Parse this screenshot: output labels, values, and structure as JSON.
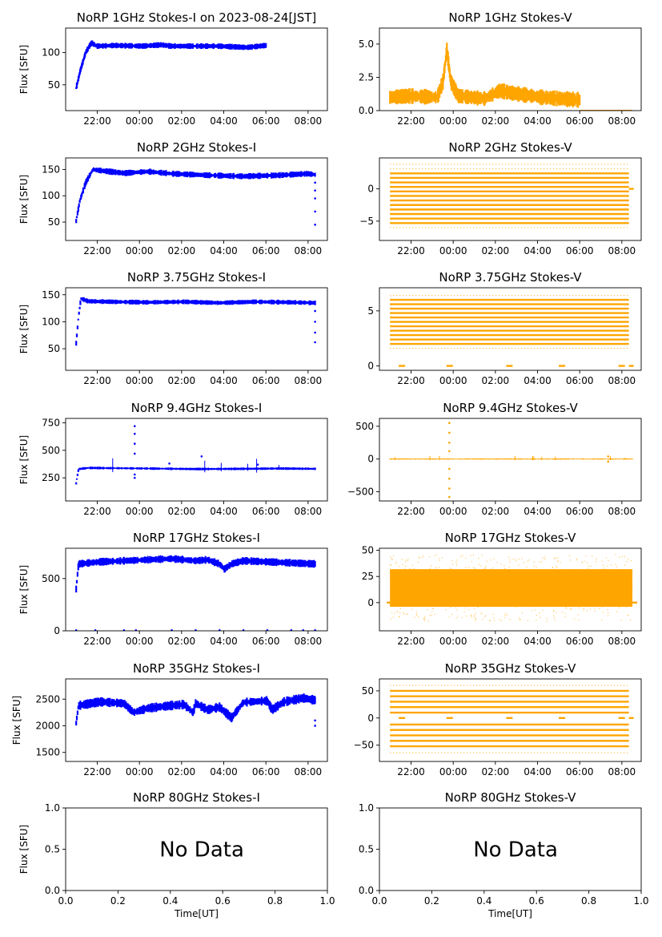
{
  "figure": {
    "xlabel": "Time[UT]",
    "ylabel": "Flux [SFU]",
    "no_data_text": "No Data",
    "colors": {
      "stokes_i": "#0000ff",
      "stokes_v": "#ffa500"
    }
  },
  "chart_data": [
    {
      "type": "scatter",
      "title": "NoRP 1GHz Stokes-I on 2023-08-24[JST]",
      "stokes": "I",
      "has_ylabel": true,
      "x_ticks": [
        "22:00",
        "00:00",
        "02:00",
        "04:00",
        "06:00",
        "08:00"
      ],
      "xlim": [
        "20:30",
        "08:55"
      ],
      "data_range": [
        "21:00",
        "06:00"
      ],
      "ylim": [
        10,
        138
      ],
      "y_ticks": [
        50,
        100
      ],
      "series": [
        {
          "values": [
            [
              0,
              45
            ],
            [
              0.02,
              70
            ],
            [
              0.05,
              100
            ],
            [
              0.08,
              115
            ],
            [
              0.11,
              110
            ],
            [
              0.2,
              111
            ],
            [
              0.35,
              110
            ],
            [
              0.45,
              112
            ],
            [
              0.5,
              110
            ],
            [
              0.6,
              110
            ],
            [
              0.75,
              110
            ],
            [
              0.9,
              108
            ],
            [
              1,
              111
            ]
          ]
        }
      ],
      "band": 3,
      "spike_count": 0,
      "spike_amp": 0,
      "outliers": []
    },
    {
      "type": "scatter",
      "title": "NoRP 1GHz Stokes-V",
      "stokes": "V",
      "has_ylabel": false,
      "x_ticks": [
        "22:00",
        "00:00",
        "02:00",
        "04:00",
        "06:00",
        "08:00"
      ],
      "xlim": [
        "20:30",
        "08:55"
      ],
      "data_range": [
        "21:00",
        "06:00"
      ],
      "ylim": [
        0,
        6.2
      ],
      "y_ticks": [
        0.0,
        2.5,
        5.0
      ],
      "series": [
        {
          "values": [
            [
              0,
              1.0
            ],
            [
              0.1,
              1.1
            ],
            [
              0.25,
              1.0
            ],
            [
              0.28,
              2.2
            ],
            [
              0.3,
              4.6
            ],
            [
              0.32,
              2.2
            ],
            [
              0.36,
              1.1
            ],
            [
              0.5,
              0.9
            ],
            [
              0.58,
              1.5
            ],
            [
              0.65,
              1.3
            ],
            [
              0.8,
              1.0
            ],
            [
              0.9,
              0.9
            ],
            [
              1,
              0.8
            ]
          ]
        }
      ],
      "band": 0.4,
      "spike_count": 0,
      "spike_amp": 0,
      "outliers": [],
      "extra_segment": {
        "range": [
          "06:00",
          "08:30"
        ],
        "value": 0.02
      }
    },
    {
      "type": "scatter",
      "title": "NoRP 2GHz Stokes-I",
      "stokes": "I",
      "has_ylabel": true,
      "x_ticks": [
        "22:00",
        "00:00",
        "02:00",
        "04:00",
        "06:00",
        "08:00"
      ],
      "xlim": [
        "20:30",
        "08:55"
      ],
      "data_range": [
        "21:00",
        "08:20"
      ],
      "ylim": [
        15,
        172
      ],
      "y_ticks": [
        50,
        100,
        150
      ],
      "series": [
        {
          "values": [
            [
              0,
              52
            ],
            [
              0.015,
              90
            ],
            [
              0.04,
              125
            ],
            [
              0.07,
              150
            ],
            [
              0.1,
              148
            ],
            [
              0.2,
              143
            ],
            [
              0.3,
              146
            ],
            [
              0.4,
              142
            ],
            [
              0.55,
              139
            ],
            [
              0.7,
              137
            ],
            [
              0.85,
              139
            ],
            [
              0.97,
              142
            ],
            [
              1,
              140
            ]
          ]
        }
      ],
      "band": 4,
      "spike_count": 0,
      "spike_amp": 0,
      "outliers": [
        [
          1.0,
          125
        ],
        [
          1.0,
          95
        ],
        [
          1.0,
          70
        ],
        [
          1.0,
          45
        ],
        [
          1.0,
          110
        ]
      ]
    },
    {
      "type": "stripes",
      "title": "NoRP 2GHz Stokes-V",
      "stokes": "V",
      "has_ylabel": false,
      "x_ticks": [
        "22:00",
        "00:00",
        "02:00",
        "04:00",
        "06:00",
        "08:00"
      ],
      "xlim": [
        "20:30",
        "08:55"
      ],
      "data_range": [
        "21:00",
        "08:20"
      ],
      "ylim": [
        -8,
        4.8
      ],
      "y_ticks": [
        -5,
        0
      ],
      "levels": [
        -5.3,
        -4.6,
        -3.9,
        -3.2,
        -2.5,
        -1.8,
        -1.1,
        -0.4,
        0.3,
        1.0,
        1.7,
        2.4
      ],
      "sparse_levels": [
        -6.0,
        3.1,
        3.8
      ],
      "end_marker": 0
    },
    {
      "type": "scatter",
      "title": "NoRP 3.75GHz Stokes-I",
      "stokes": "I",
      "has_ylabel": true,
      "x_ticks": [
        "22:00",
        "00:00",
        "02:00",
        "04:00",
        "06:00",
        "08:00"
      ],
      "xlim": [
        "20:30",
        "08:55"
      ],
      "data_range": [
        "21:00",
        "08:20"
      ],
      "ylim": [
        10,
        163
      ],
      "y_ticks": [
        50,
        100,
        150
      ],
      "series": [
        {
          "values": [
            [
              0,
              60
            ],
            [
              0.01,
              110
            ],
            [
              0.02,
              143
            ],
            [
              0.05,
              138
            ],
            [
              0.15,
              137
            ],
            [
              0.3,
              136
            ],
            [
              0.45,
              137
            ],
            [
              0.6,
              135
            ],
            [
              0.75,
              137
            ],
            [
              0.9,
              136
            ],
            [
              1,
              135
            ]
          ]
        }
      ],
      "band": 3,
      "spike_count": 0,
      "spike_amp": 0,
      "outliers": [
        [
          1.0,
          120
        ],
        [
          1.0,
          100
        ],
        [
          1.0,
          80
        ],
        [
          1.0,
          62
        ]
      ]
    },
    {
      "type": "stripes",
      "title": "NoRP 3.75GHz Stokes-V",
      "stokes": "V",
      "has_ylabel": false,
      "x_ticks": [
        "22:00",
        "00:00",
        "02:00",
        "04:00",
        "06:00",
        "08:00"
      ],
      "xlim": [
        "20:30",
        "08:55"
      ],
      "data_range": [
        "21:00",
        "08:20"
      ],
      "ylim": [
        -0.4,
        7.1
      ],
      "y_ticks": [
        0,
        5
      ],
      "levels": [
        2.0,
        2.4,
        2.8,
        3.2,
        3.6,
        4.0,
        4.4,
        4.8,
        5.2,
        5.6,
        6.0
      ],
      "sparse_levels": [
        1.6,
        6.4
      ],
      "baseline": 0,
      "end_marker": 0
    },
    {
      "type": "scatter",
      "title": "NoRP 9.4GHz Stokes-I",
      "stokes": "I",
      "has_ylabel": true,
      "x_ticks": [
        "22:00",
        "00:00",
        "02:00",
        "04:00",
        "06:00",
        "08:00"
      ],
      "xlim": [
        "20:30",
        "08:55"
      ],
      "data_range": [
        "21:00",
        "08:20"
      ],
      "ylim": [
        40,
        790
      ],
      "y_ticks": [
        250,
        500,
        750
      ],
      "series": [
        {
          "values": [
            [
              0,
              200
            ],
            [
              0.01,
              330
            ],
            [
              0.05,
              340
            ],
            [
              0.15,
              338
            ],
            [
              0.3,
              335
            ],
            [
              0.5,
              330
            ],
            [
              0.7,
              332
            ],
            [
              0.85,
              335
            ],
            [
              1,
              332
            ]
          ]
        }
      ],
      "band": 8,
      "spike_count": 6,
      "spike_amp": 60,
      "outliers": [
        [
          0.245,
          720
        ],
        [
          0.245,
          650
        ],
        [
          0.245,
          560
        ],
        [
          0.245,
          470
        ],
        [
          0.245,
          250
        ],
        [
          0.245,
          280
        ],
        [
          0.39,
          380
        ],
        [
          0.525,
          445
        ],
        [
          0.76,
          370
        ]
      ]
    },
    {
      "type": "scatter",
      "title": "NoRP 9.4GHz Stokes-V",
      "stokes": "V",
      "has_ylabel": false,
      "x_ticks": [
        "22:00",
        "00:00",
        "02:00",
        "04:00",
        "06:00",
        "08:00"
      ],
      "xlim": [
        "20:30",
        "08:55"
      ],
      "data_range": [
        "21:00",
        "08:30"
      ],
      "ylim": [
        -640,
        620
      ],
      "y_ticks": [
        -500,
        0,
        500
      ],
      "series": [
        {
          "values": [
            [
              0,
              0
            ],
            [
              1,
              0
            ]
          ]
        }
      ],
      "band": 6,
      "spike_count": 10,
      "spike_amp": 35,
      "outliers": [
        [
          0.245,
          550
        ],
        [
          0.245,
          400
        ],
        [
          0.245,
          250
        ],
        [
          0.245,
          120
        ],
        [
          0.245,
          -150
        ],
        [
          0.245,
          -300
        ],
        [
          0.245,
          -450
        ],
        [
          0.245,
          -580
        ],
        [
          0.9,
          40
        ],
        [
          0.9,
          -40
        ]
      ]
    },
    {
      "type": "scatter",
      "title": "NoRP 17GHz Stokes-I",
      "stokes": "I",
      "has_ylabel": true,
      "x_ticks": [
        "22:00",
        "00:00",
        "02:00",
        "04:00",
        "06:00",
        "08:00"
      ],
      "xlim": [
        "20:30",
        "08:55"
      ],
      "data_range": [
        "21:00",
        "08:20"
      ],
      "ylim": [
        0,
        790
      ],
      "y_ticks": [
        0,
        500
      ],
      "series": [
        {
          "values": [
            [
              0,
              400
            ],
            [
              0.01,
              640
            ],
            [
              0.1,
              660
            ],
            [
              0.2,
              670
            ],
            [
              0.3,
              680
            ],
            [
              0.4,
              690
            ],
            [
              0.5,
              670
            ],
            [
              0.55,
              680
            ],
            [
              0.6,
              640
            ],
            [
              0.62,
              590
            ],
            [
              0.65,
              640
            ],
            [
              0.7,
              670
            ],
            [
              0.8,
              660
            ],
            [
              0.9,
              650
            ],
            [
              1,
              640
            ]
          ]
        }
      ],
      "band": 25,
      "spike_count": 0,
      "spike_amp": 0,
      "outliers": [
        [
          0.0,
          5
        ],
        [
          0.08,
          5
        ],
        [
          0.2,
          5
        ],
        [
          0.25,
          5
        ],
        [
          0.4,
          5
        ],
        [
          0.5,
          5
        ],
        [
          0.6,
          5
        ],
        [
          0.7,
          5
        ],
        [
          0.8,
          5
        ],
        [
          0.9,
          5
        ],
        [
          0.95,
          5
        ],
        [
          1.02,
          5
        ]
      ]
    },
    {
      "type": "noise",
      "title": "NoRP 17GHz Stokes-V",
      "stokes": "V",
      "has_ylabel": false,
      "x_ticks": [
        "22:00",
        "00:00",
        "02:00",
        "04:00",
        "06:00",
        "08:00"
      ],
      "xlim": [
        "20:30",
        "08:55"
      ],
      "data_range": [
        "21:00",
        "08:30"
      ],
      "ylim": [
        -27,
        52
      ],
      "y_ticks": [
        0,
        25,
        50
      ],
      "center": 14,
      "half_width": 18,
      "sparse_width": 32,
      "end_value": 0
    },
    {
      "type": "scatter",
      "title": "NoRP 35GHz Stokes-I",
      "stokes": "I",
      "has_ylabel": true,
      "x_ticks": [
        "22:00",
        "00:00",
        "02:00",
        "04:00",
        "06:00",
        "08:00"
      ],
      "xlim": [
        "20:30",
        "08:55"
      ],
      "data_range": [
        "21:00",
        "08:20"
      ],
      "ylim": [
        1330,
        2880
      ],
      "y_ticks": [
        1500,
        2000,
        2500
      ],
      "series": [
        {
          "values": [
            [
              0,
              2050
            ],
            [
              0.01,
              2380
            ],
            [
              0.1,
              2450
            ],
            [
              0.2,
              2420
            ],
            [
              0.24,
              2250
            ],
            [
              0.3,
              2330
            ],
            [
              0.4,
              2380
            ],
            [
              0.45,
              2400
            ],
            [
              0.49,
              2250
            ],
            [
              0.5,
              2420
            ],
            [
              0.55,
              2300
            ],
            [
              0.6,
              2350
            ],
            [
              0.65,
              2150
            ],
            [
              0.7,
              2440
            ],
            [
              0.8,
              2470
            ],
            [
              0.82,
              2300
            ],
            [
              0.87,
              2450
            ],
            [
              0.95,
              2520
            ],
            [
              1,
              2480
            ]
          ]
        }
      ],
      "band": 60,
      "spike_count": 0,
      "spike_amp": 0,
      "outliers": [
        [
          1.0,
          2100
        ],
        [
          1.0,
          2000
        ]
      ]
    },
    {
      "type": "stripes",
      "title": "NoRP 35GHz Stokes-V",
      "stokes": "V",
      "has_ylabel": false,
      "x_ticks": [
        "22:00",
        "00:00",
        "02:00",
        "04:00",
        "06:00",
        "08:00"
      ],
      "xlim": [
        "20:30",
        "08:55"
      ],
      "data_range": [
        "21:00",
        "08:20"
      ],
      "ylim": [
        -80,
        72
      ],
      "y_ticks": [
        -50,
        0,
        50
      ],
      "levels": [
        -52,
        -42,
        -32,
        -22,
        -12,
        10,
        20,
        30,
        40,
        50
      ],
      "sparse_levels": [
        -64,
        60
      ],
      "baseline": 0,
      "end_marker": 0
    },
    {
      "type": "empty",
      "title": "NoRP 80GHz Stokes-I",
      "stokes": "I",
      "has_ylabel": true,
      "xlim": [
        0,
        1
      ],
      "ylim": [
        0,
        1
      ],
      "x_ticks": [
        "0.0",
        "0.2",
        "0.4",
        "0.6",
        "0.8",
        "1.0"
      ],
      "y_ticks": [
        "0.0",
        "0.5",
        "1.0"
      ]
    },
    {
      "type": "empty",
      "title": "NoRP 80GHz Stokes-V",
      "stokes": "V",
      "has_ylabel": false,
      "xlim": [
        0,
        1
      ],
      "ylim": [
        0,
        1
      ],
      "x_ticks": [
        "0.0",
        "0.2",
        "0.4",
        "0.6",
        "0.8",
        "1.0"
      ],
      "y_ticks": [
        "0.0",
        "0.5",
        "1.0"
      ]
    }
  ]
}
